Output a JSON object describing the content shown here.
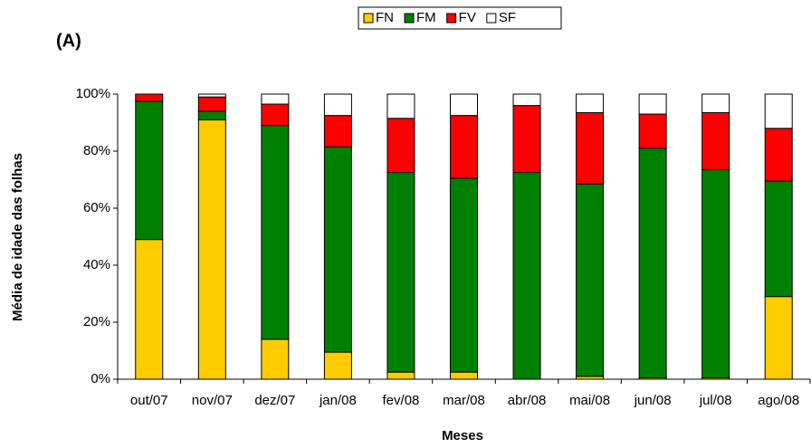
{
  "chart_data": {
    "type": "stacked_bar",
    "title": "(A)",
    "x_label": "Meses",
    "y_label": "Média de idade das folhas",
    "categories": [
      "out/07",
      "nov/07",
      "dez/07",
      "jan/08",
      "fev/08",
      "mar/08",
      "abr/08",
      "mai/08",
      "jun/08",
      "jul/08",
      "ago/08"
    ],
    "series": [
      {
        "name": "FN",
        "color": "#ffcc00",
        "values": [
          49,
          91,
          14,
          9.5,
          2.5,
          2.5,
          0,
          1,
          0.5,
          0.5,
          29
        ]
      },
      {
        "name": "FM",
        "color": "#008000",
        "values": [
          48.5,
          3,
          75,
          72,
          70,
          68,
          72.5,
          67.5,
          80.5,
          73,
          40.5
        ]
      },
      {
        "name": "FV",
        "color": "#ff0000",
        "values": [
          2.5,
          5,
          7.5,
          11,
          19,
          22,
          23.5,
          25,
          12,
          20,
          18.5
        ]
      },
      {
        "name": "SF",
        "color": "#ffffff",
        "values": [
          0,
          1,
          3.5,
          7.5,
          8.5,
          7.5,
          4,
          6.5,
          7,
          6.5,
          12
        ]
      }
    ],
    "ylim": [
      0,
      100
    ],
    "yticks": [
      {
        "value": 0,
        "label": "0%"
      },
      {
        "value": 20,
        "label": "20%"
      },
      {
        "value": 40,
        "label": "40%"
      },
      {
        "value": 60,
        "label": "60%"
      },
      {
        "value": 80,
        "label": "80%"
      },
      {
        "value": 100,
        "label": "100%"
      }
    ],
    "grid": false,
    "legend": "top"
  }
}
